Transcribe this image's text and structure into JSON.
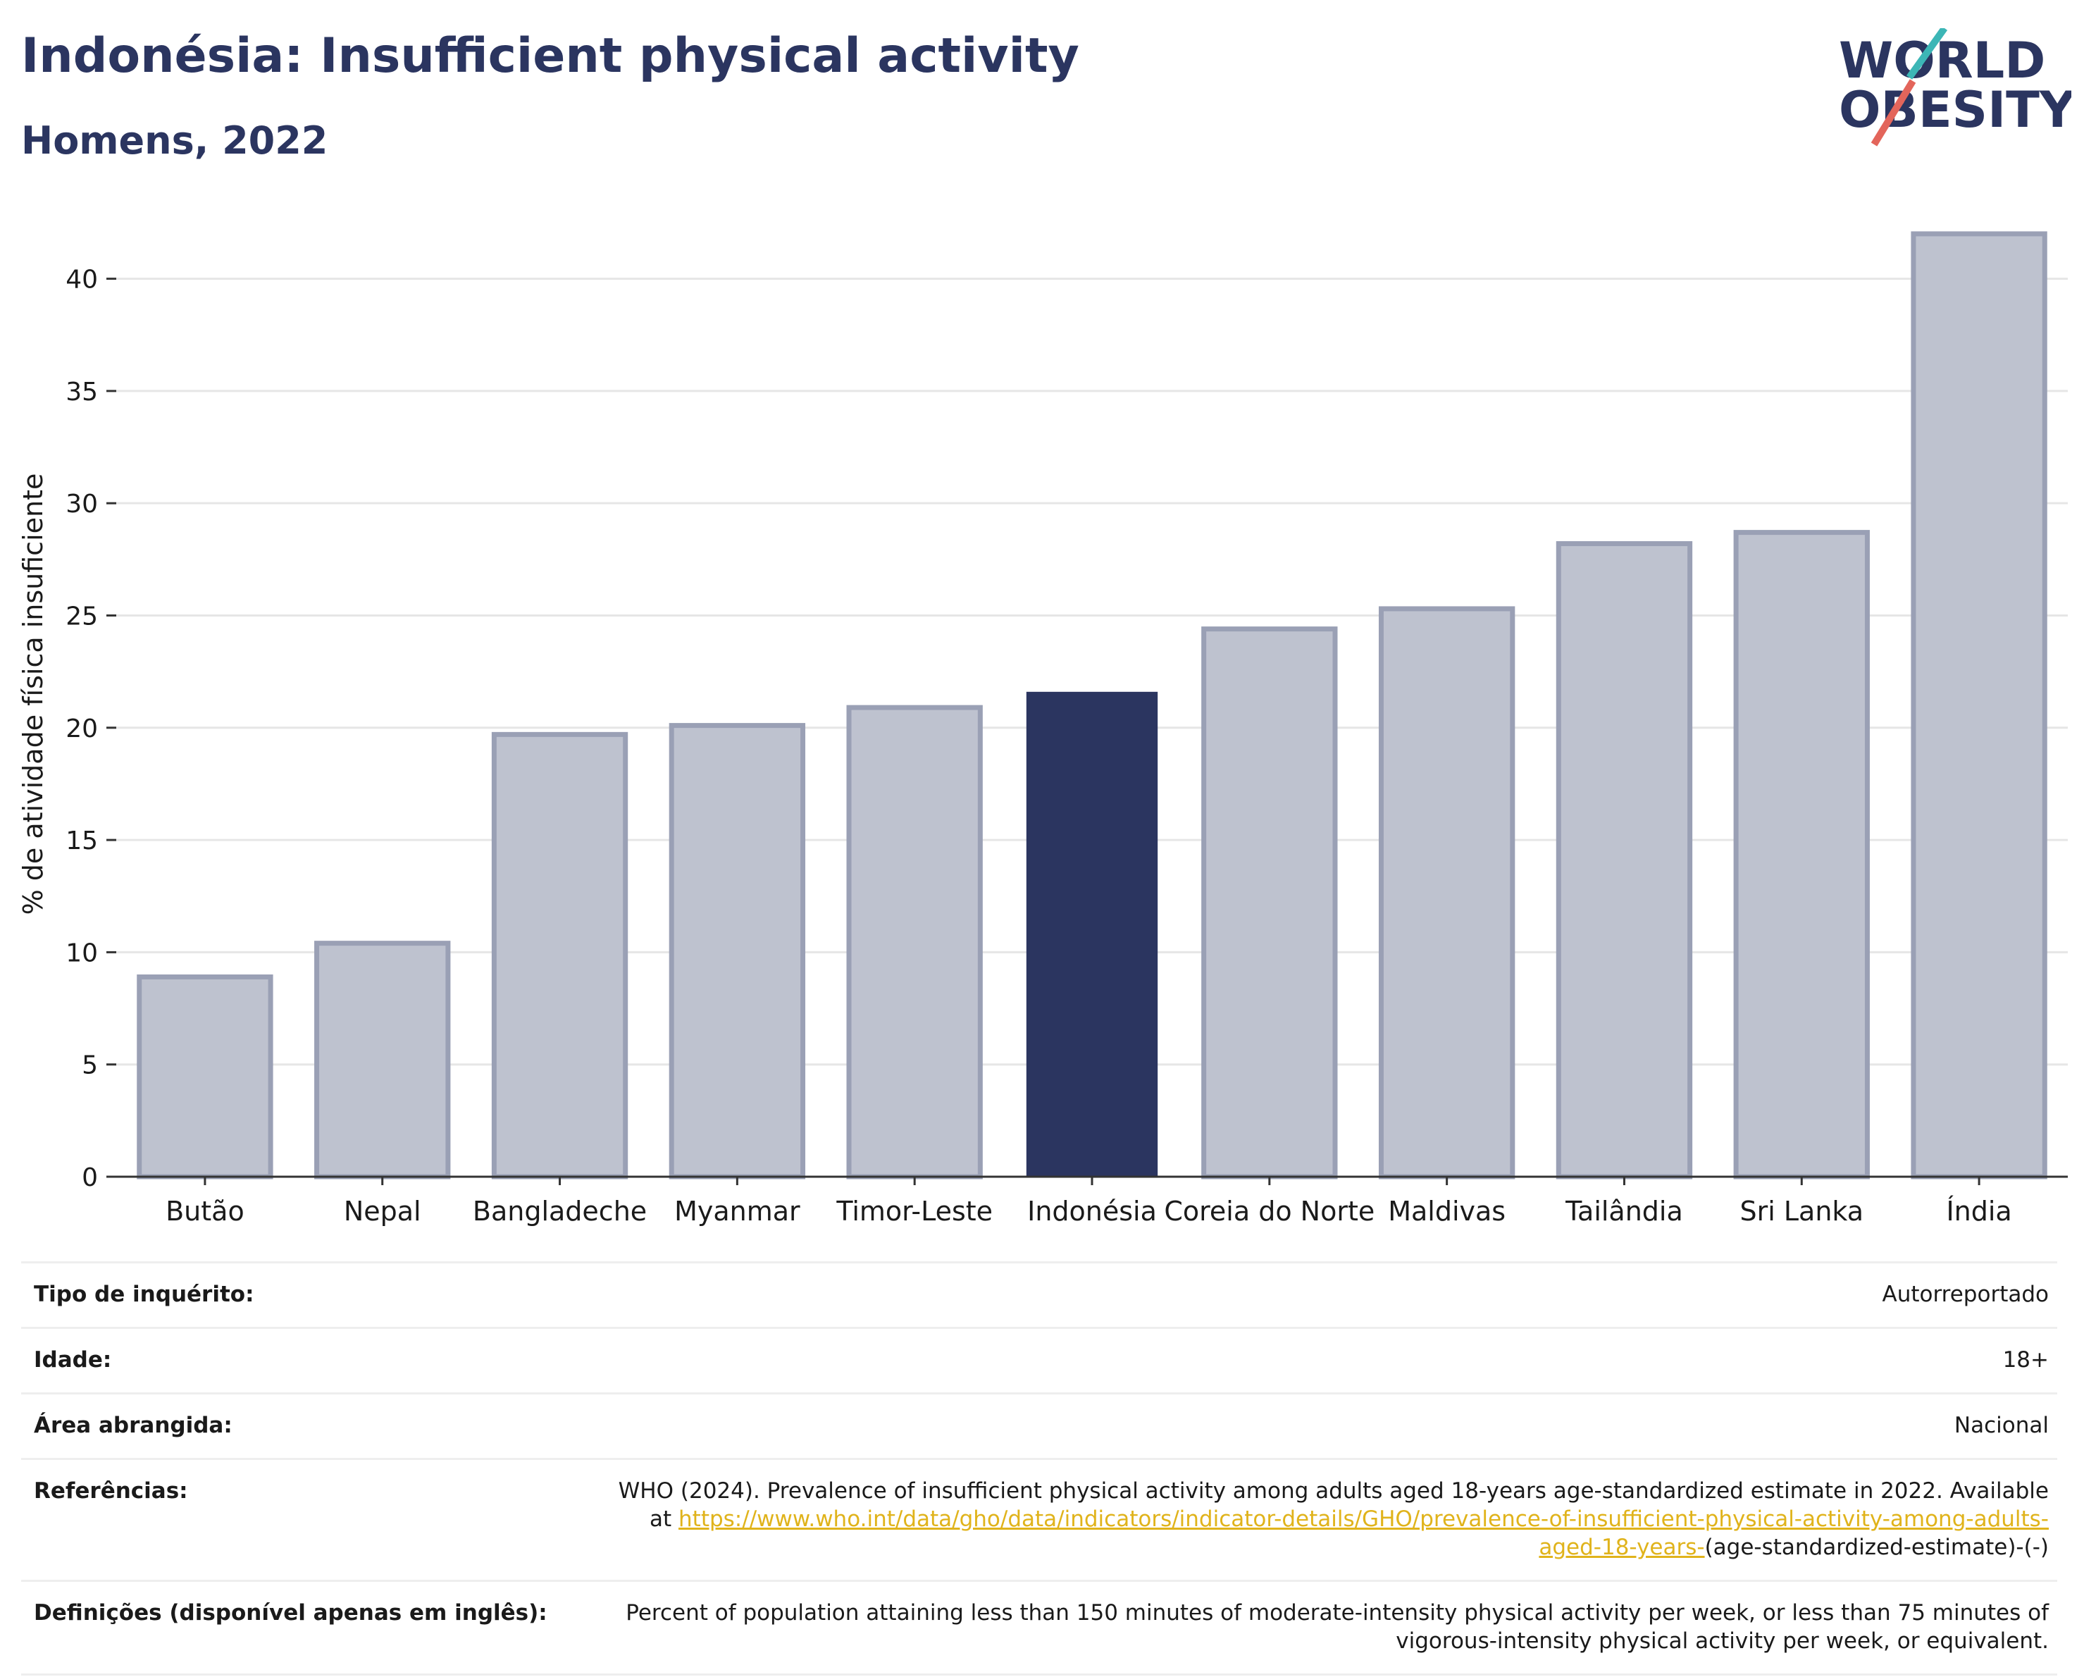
{
  "header": {
    "title": "Indonésia: Insufficient physical activity",
    "subtitle": "Homens, 2022"
  },
  "logo": {
    "line1": "WORLD",
    "line2": "OBESITY"
  },
  "colors": {
    "highlight": "#2b3560",
    "bar": "#bec2cf",
    "bar_border": "#9aa0b5",
    "accent_teal": "#3cb6b6",
    "accent_red": "#e3655b",
    "link": "#e0b31b"
  },
  "chart_data": {
    "type": "bar",
    "categories": [
      "Butão",
      "Nepal",
      "Bangladeche",
      "Myanmar",
      "Timor-Leste",
      "Indonésia",
      "Coreia do Norte",
      "Maldivas",
      "Tailândia",
      "Sri Lanka",
      "Índia"
    ],
    "values": [
      8.9,
      10.4,
      19.7,
      20.1,
      20.9,
      21.6,
      24.4,
      25.3,
      28.2,
      28.7,
      42.0
    ],
    "highlight": "Indonésia",
    "ylabel": "% de atividade física insuficiente",
    "xlabel": "",
    "ylim": [
      0,
      43
    ],
    "yticks": [
      0,
      5,
      10,
      15,
      20,
      25,
      30,
      35,
      40
    ],
    "grid": true
  },
  "meta": [
    {
      "label": "Tipo de inquérito:",
      "value": "Autorreportado"
    },
    {
      "label": "Idade:",
      "value": "18+"
    },
    {
      "label": "Área abrangida:",
      "value": "Nacional"
    },
    {
      "label": "Referências:",
      "value_pre": "WHO (2024). Prevalence of insufficient physical activity among adults aged 18-years age-standardized estimate in 2022. Available at ",
      "link": "https://www.who.int/data/gho/data/indicators/indicator-details/GHO/prevalence-of-insufficient-physical-activity-among-adults-aged-18-years-",
      "value_post": "(age-standardized-estimate)-(-)"
    },
    {
      "label": "Definições (disponível apenas em inglês):",
      "value": "Percent of population attaining less than 150 minutes of moderate-intensity physical activity per week, or less than 75 minutes of vigorous-intensity physical activity per week, or equivalent."
    }
  ]
}
